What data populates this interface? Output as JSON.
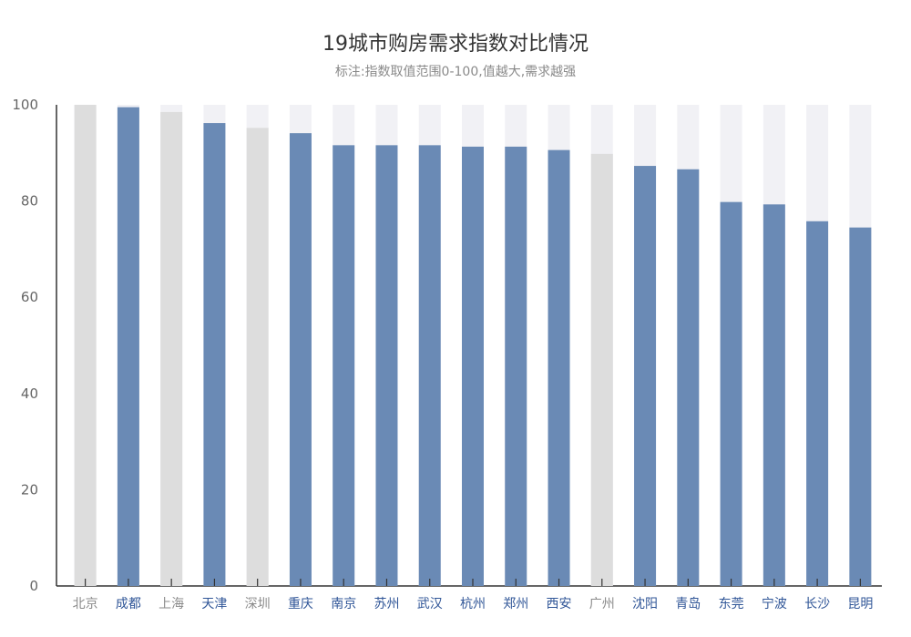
{
  "chart_data": {
    "type": "bar",
    "title": "19城市购房需求指数对比情况",
    "subtitle": "标注:指数取值范围0-100,值越大,需求越强",
    "xlabel": "",
    "ylabel": "",
    "ylim": [
      0,
      100
    ],
    "yticks": [
      "0",
      "20",
      "40",
      "60",
      "80",
      "100"
    ],
    "ytick_values": [
      0,
      20,
      40,
      60,
      80,
      100
    ],
    "grid": false,
    "legend": "none",
    "categories": [
      "北京",
      "成都",
      "上海",
      "天津",
      "深圳",
      "重庆",
      "南京",
      "苏州",
      "武汉",
      "杭州",
      "郑州",
      "西安",
      "广州",
      "沈阳",
      "青岛",
      "东莞",
      "宁波",
      "长沙",
      "昆明"
    ],
    "values": [
      100,
      99.5,
      98.5,
      96.2,
      95.2,
      94.1,
      91.6,
      91.6,
      91.6,
      91.3,
      91.3,
      90.6,
      89.8,
      87.3,
      86.6,
      79.8,
      79.3,
      75.8,
      74.5
    ],
    "highlight": [
      false,
      true,
      false,
      true,
      false,
      true,
      true,
      true,
      true,
      true,
      true,
      true,
      false,
      true,
      true,
      true,
      true,
      true,
      true
    ],
    "colors": {
      "highlight_bar": "#6a8ab5",
      "muted_bar": "#dddddd",
      "background_bar": "#f1f1f5",
      "highlight_label": "#2f5597",
      "muted_label": "#8a8a8a",
      "axis": "#333333"
    }
  }
}
